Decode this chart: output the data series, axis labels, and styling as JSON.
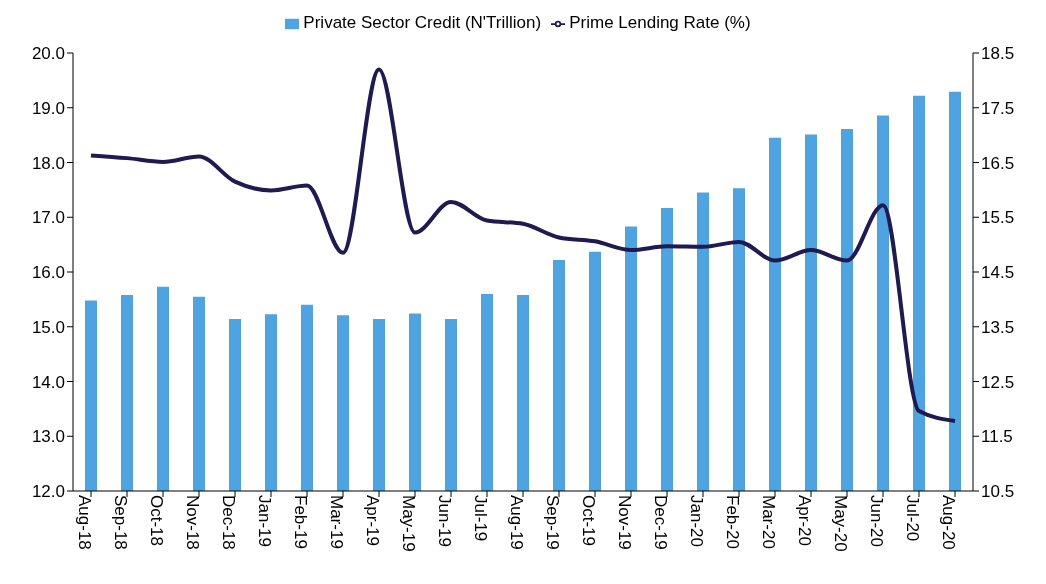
{
  "chart_data": {
    "type": "bar",
    "categories": [
      "Aug-18",
      "Sep-18",
      "Oct-18",
      "Nov-18",
      "Dec-18",
      "Jan-19",
      "Feb-19",
      "Mar-19",
      "Apr-19",
      "May-19",
      "Jun-19",
      "Jul-19",
      "Aug-19",
      "Sep-19",
      "Oct-19",
      "Nov-19",
      "Dec-19",
      "Jan-20",
      "Feb-20",
      "Mar-20",
      "Apr-20",
      "May-20",
      "Jun-20",
      "Jul-20",
      "Aug-20"
    ],
    "series": [
      {
        "name": "Private Sector Credit (N'Trillion)",
        "color": "#4fa3e0",
        "values": [
          15.48,
          15.58,
          15.73,
          15.55,
          15.14,
          15.23,
          15.4,
          15.21,
          15.14,
          15.24,
          15.14,
          15.6,
          15.58,
          16.22,
          16.37,
          16.83,
          17.17,
          17.45,
          17.53,
          18.45,
          18.51,
          18.61,
          18.86,
          19.22,
          19.29
        ]
      },
      {
        "name": "Prime Lending Rate (%)",
        "type": "line",
        "axis": "y2",
        "color": "#1f1a4f",
        "values": [
          16.63,
          16.58,
          16.51,
          16.61,
          16.15,
          15.99,
          16.08,
          14.85,
          18.2,
          15.22,
          15.78,
          15.44,
          15.38,
          15.13,
          15.06,
          14.9,
          14.97,
          14.96,
          15.05,
          14.71,
          14.9,
          14.71,
          15.72,
          11.96,
          11.78
        ]
      }
    ],
    "ylim": [
      12,
      20
    ],
    "yticks": [
      {
        "value": 12,
        "label": "12.0"
      },
      {
        "value": 13,
        "label": "13.0"
      },
      {
        "value": 14,
        "label": "14.0"
      },
      {
        "value": 15,
        "label": "15.0"
      },
      {
        "value": 16,
        "label": "16.0"
      },
      {
        "value": 17,
        "label": "17.0"
      },
      {
        "value": 18,
        "label": "18.0"
      },
      {
        "value": 19,
        "label": "19.0"
      },
      {
        "value": 20,
        "label": "20.0"
      }
    ],
    "y2lim": [
      10.5,
      18.5
    ],
    "y2ticks": [
      10.5,
      11.5,
      12.5,
      13.5,
      14.5,
      15.5,
      16.5,
      17.5,
      18.5
    ],
    "legend": "top",
    "marker": "none",
    "line_style": "solid"
  }
}
